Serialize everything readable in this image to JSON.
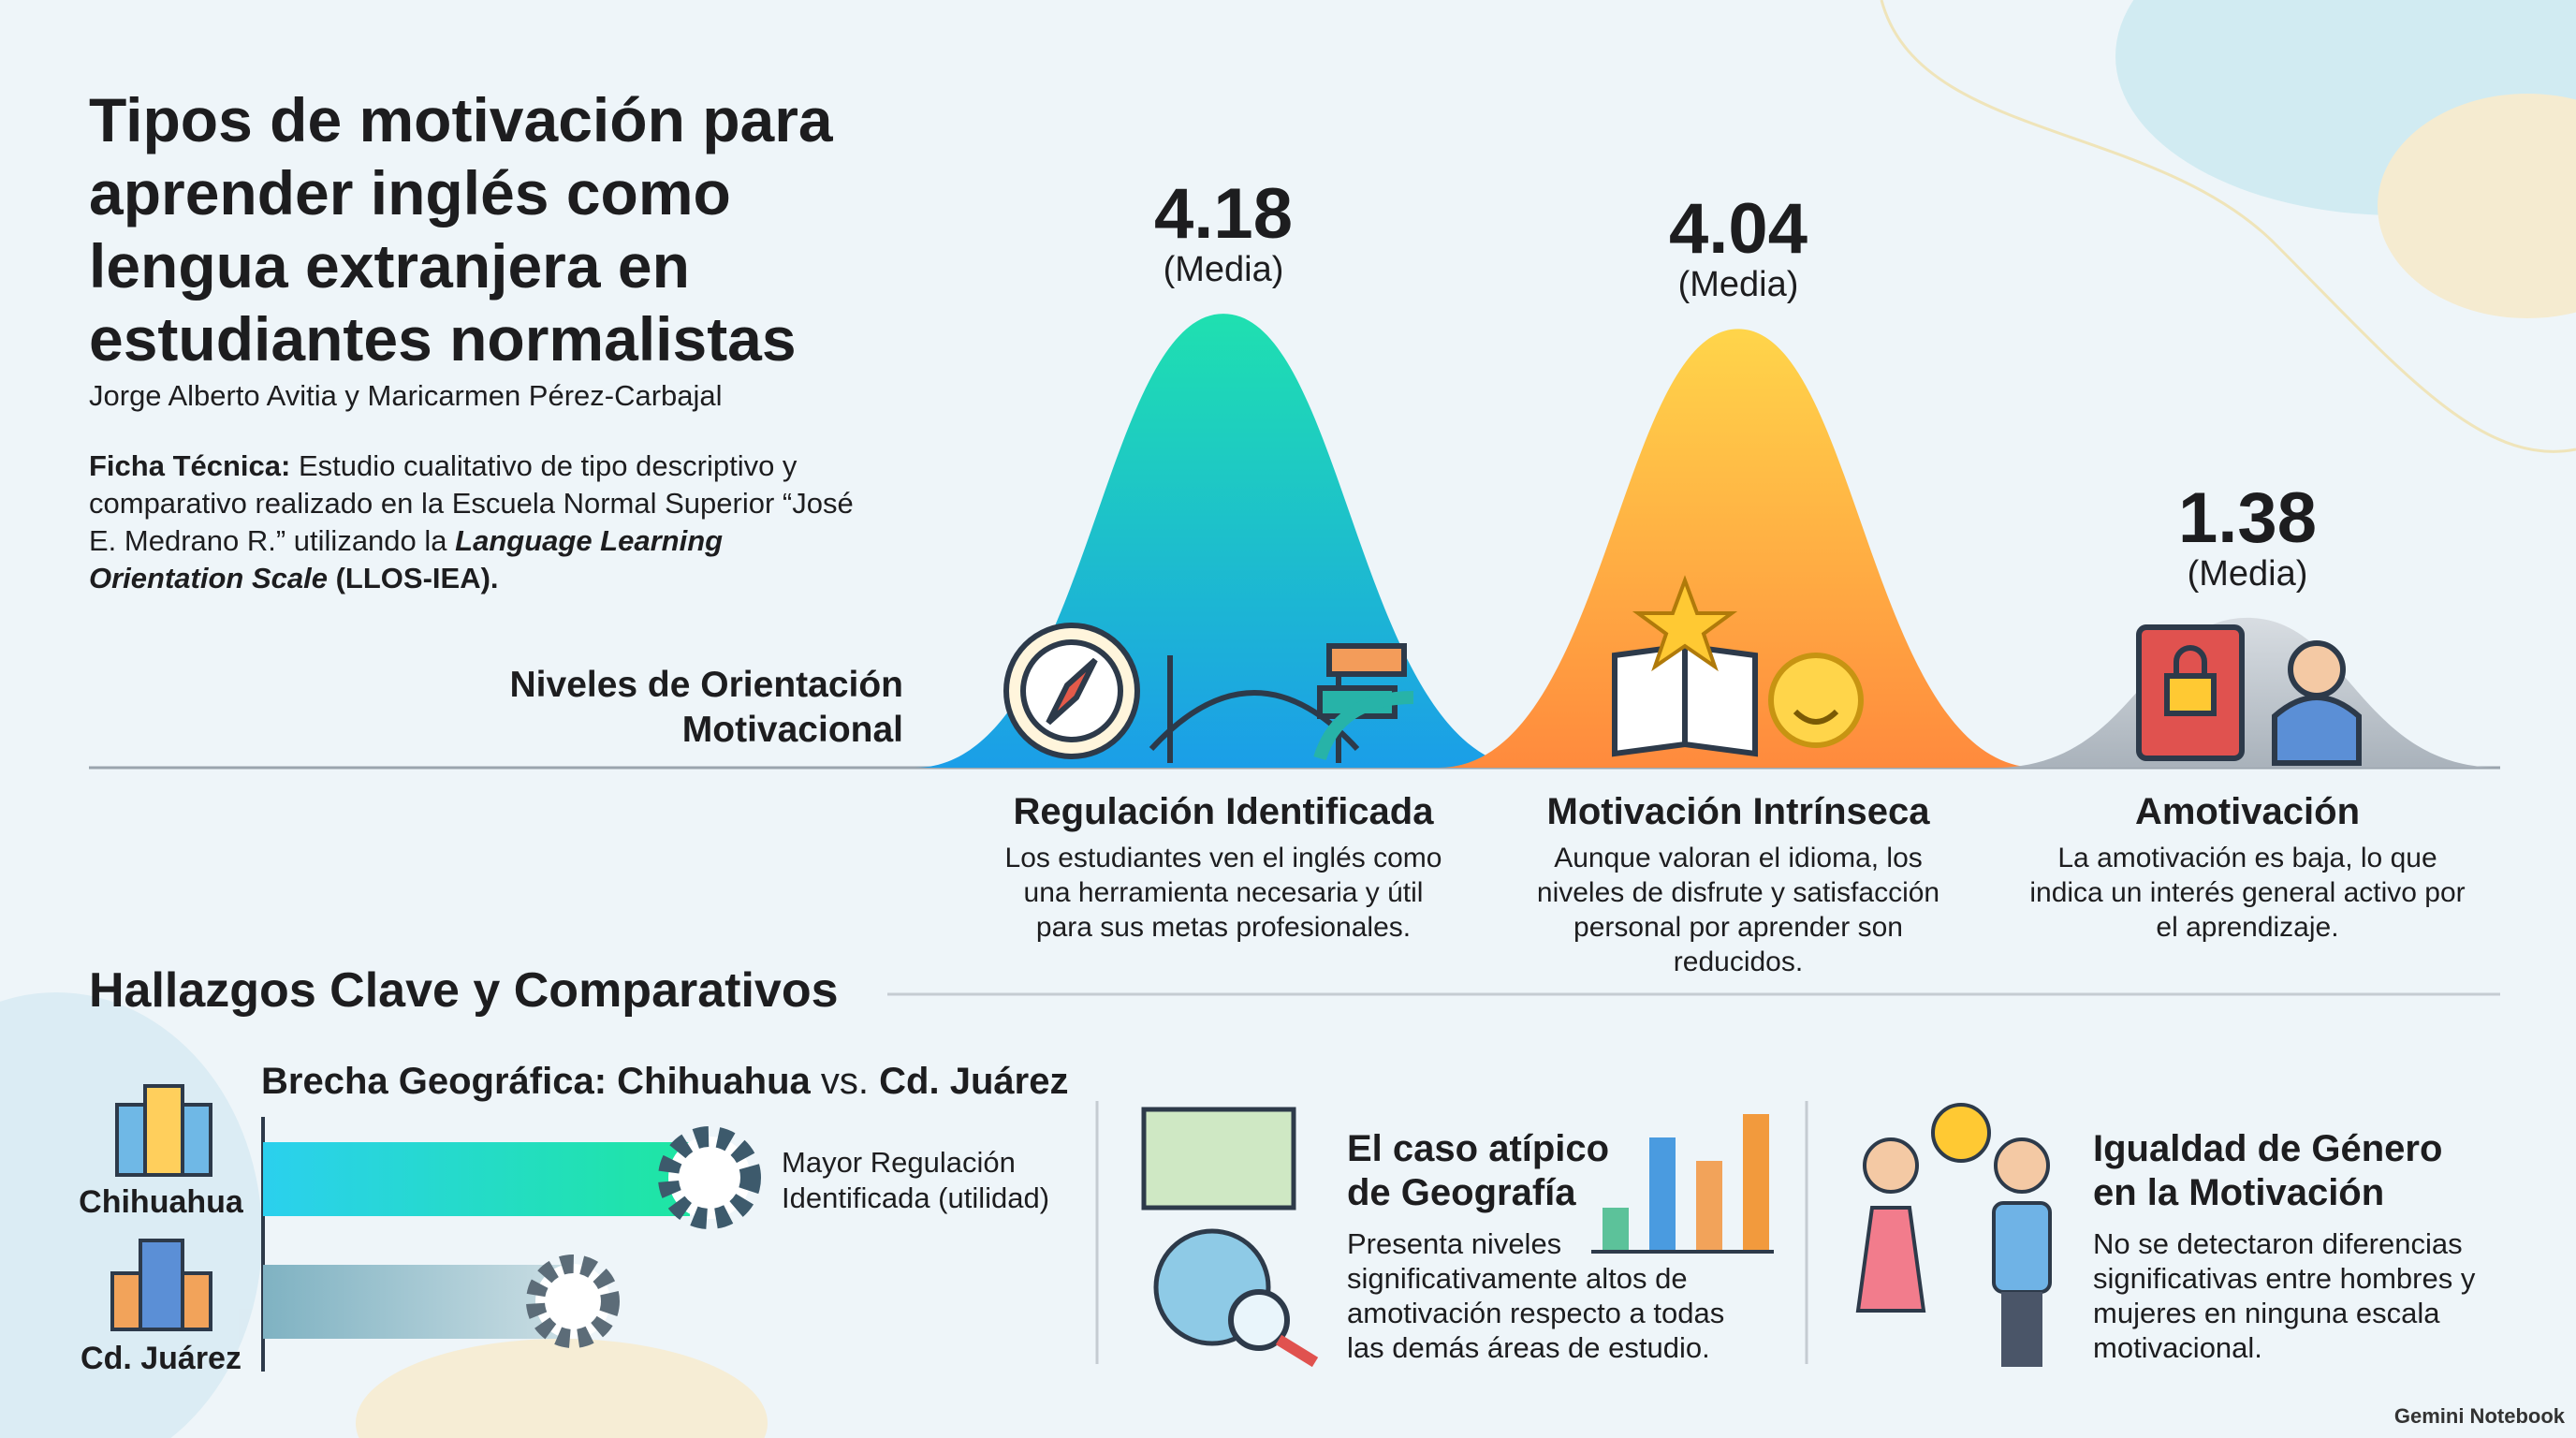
{
  "header": {
    "title_lines": [
      "Tipos de motivación para",
      "aprender inglés como",
      "lengua extranjera en",
      "estudiantes normalistas"
    ],
    "authors": "Jorge Alberto Avitia y Maricarmen Pérez-Carbajal",
    "ficha": {
      "label": "Ficha Técnica:",
      "text": "Estudio cualitativo de tipo descriptivo y comparativo realizado en la Escuela Normal Superior “José E. Medrano R.” utilizando la",
      "scale_name": "Language Learning Orientation Scale",
      "scale_abbr": "(LLOS-IEA)."
    }
  },
  "levels": {
    "axis_label_lines": [
      "Niveles de Orientación",
      "Motivacional"
    ],
    "items": [
      {
        "value": 4.18,
        "unit": "(Media)",
        "name": "Regulación Identificada",
        "description": "Los estudiantes ven el inglés como una herramienta necesaria y útil para sus metas profesionales."
      },
      {
        "value": 4.04,
        "unit": "(Media)",
        "name": "Motivación Intrínseca",
        "description": "Aunque valoran el idioma, los niveles de disfrute y satisfacción personal por aprender son reducidos."
      },
      {
        "value": 1.38,
        "unit": "(Media)",
        "name": "Amotivación",
        "description": "La amotivación es baja, lo que indica un interés general activo por el aprendizaje."
      }
    ]
  },
  "findings": {
    "heading": "Hallazgos Clave y Comparativos",
    "geo": {
      "title_a": "Brecha Geográfica: Chihuahua",
      "title_vs": "vs.",
      "title_b": "Cd. Juárez",
      "city_a": "Chihuahua",
      "city_b": "Cd. Juárez",
      "note": "Mayor Regulación Identificada (utilidad)"
    },
    "geography": {
      "title_lines": [
        "El caso atípico",
        "de Geografía"
      ],
      "body": "Presenta niveles significativamente altos de amotivación respecto a todas las demás áreas de estudio."
    },
    "gender": {
      "title_lines": [
        "Igualdad de Género",
        "en la Motivación"
      ],
      "body": "No se detectaron diferencias significativas entre hombres y mujeres en ninguna escala motivacional."
    }
  },
  "footer": "Gemini Notebook"
}
